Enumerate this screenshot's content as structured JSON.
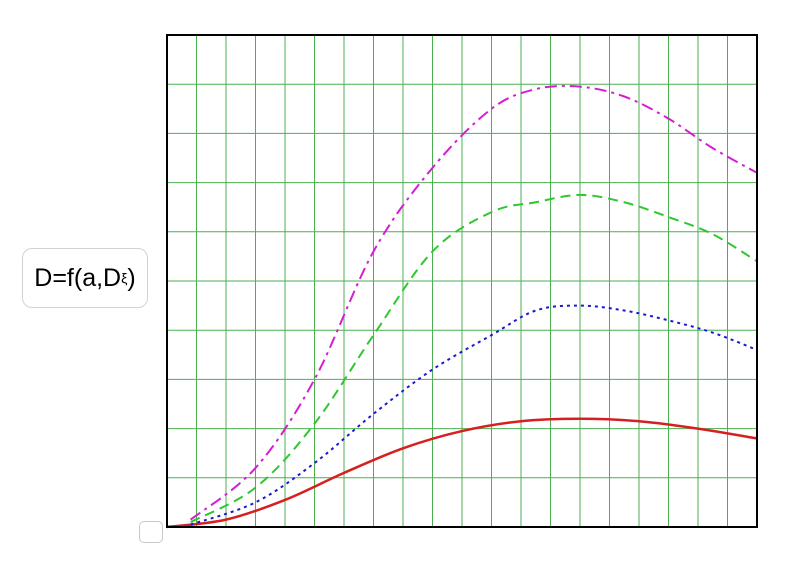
{
  "chart_data": {
    "type": "line",
    "title": "",
    "xlabel": "",
    "ylabel_main": "D=f(a,D",
    "ylabel_sub": "ξ",
    "ylabel_close": ")",
    "x_divisions": 20,
    "y_divisions": 10,
    "xlim": [
      0,
      20
    ],
    "ylim": [
      0,
      10
    ],
    "grid": true,
    "grid_color": "#4caf50",
    "frame_color": "#000000",
    "series": [
      {
        "color": "#d62020",
        "dash": "solid",
        "points": [
          [
            0,
            0
          ],
          [
            2,
            0.15
          ],
          [
            4,
            0.55
          ],
          [
            6,
            1.1
          ],
          [
            8,
            1.6
          ],
          [
            10,
            1.95
          ],
          [
            12,
            2.15
          ],
          [
            14,
            2.2
          ],
          [
            16,
            2.15
          ],
          [
            18,
            2.0
          ],
          [
            20,
            1.8
          ]
        ]
      },
      {
        "color": "#1a1acc",
        "dash": "dotted",
        "points": [
          [
            0.8,
            0.05
          ],
          [
            3,
            0.5
          ],
          [
            5,
            1.3
          ],
          [
            7,
            2.3
          ],
          [
            9,
            3.2
          ],
          [
            11,
            3.9
          ],
          [
            12.5,
            4.4
          ],
          [
            14,
            4.5
          ],
          [
            15.5,
            4.4
          ],
          [
            17,
            4.2
          ],
          [
            18.5,
            3.95
          ],
          [
            20,
            3.6
          ]
        ]
      },
      {
        "color": "#2ec82e",
        "dash": "dashed",
        "points": [
          [
            0.8,
            0.1
          ],
          [
            3,
            0.8
          ],
          [
            5,
            2.1
          ],
          [
            7,
            3.9
          ],
          [
            9,
            5.6
          ],
          [
            11,
            6.4
          ],
          [
            12.5,
            6.6
          ],
          [
            14,
            6.75
          ],
          [
            15.5,
            6.6
          ],
          [
            17,
            6.3
          ],
          [
            18.5,
            5.95
          ],
          [
            20,
            5.4
          ]
        ]
      },
      {
        "color": "#d41ed4",
        "dash": "dashdot",
        "points": [
          [
            0.8,
            0.15
          ],
          [
            3,
            1.2
          ],
          [
            5,
            3.0
          ],
          [
            7,
            5.6
          ],
          [
            9,
            7.3
          ],
          [
            11,
            8.5
          ],
          [
            12.5,
            8.9
          ],
          [
            14,
            8.95
          ],
          [
            15.5,
            8.75
          ],
          [
            17,
            8.3
          ],
          [
            18.5,
            7.7
          ],
          [
            20,
            7.2
          ]
        ]
      }
    ]
  }
}
